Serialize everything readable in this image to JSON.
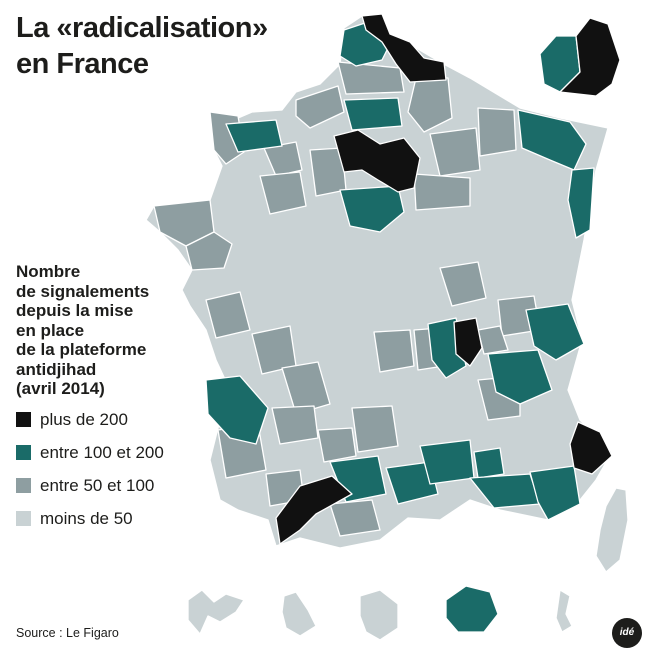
{
  "title": {
    "line1": "La «radicalisation»",
    "line2": "en France"
  },
  "legend": {
    "heading_lines": [
      "Nombre",
      "de signalements",
      "depuis la mise",
      "en place",
      "de la plateforme",
      "antidjihad",
      "(avril 2014)"
    ],
    "items": [
      {
        "label": "plus de 200",
        "color": "#111111"
      },
      {
        "label": "entre 100 et 200",
        "color": "#1a6b68"
      },
      {
        "label": "entre 50 et 100",
        "color": "#8e9ea1"
      },
      {
        "label": "moins de 50",
        "color": "#c9d2d4"
      }
    ]
  },
  "source": "Source : Le Figaro",
  "logo": "idé",
  "colors": {
    "black": "#111111",
    "teal": "#1a6b68",
    "mid_grey": "#8e9ea1",
    "light_grey": "#c9d2d4",
    "border": "#ffffff"
  }
}
